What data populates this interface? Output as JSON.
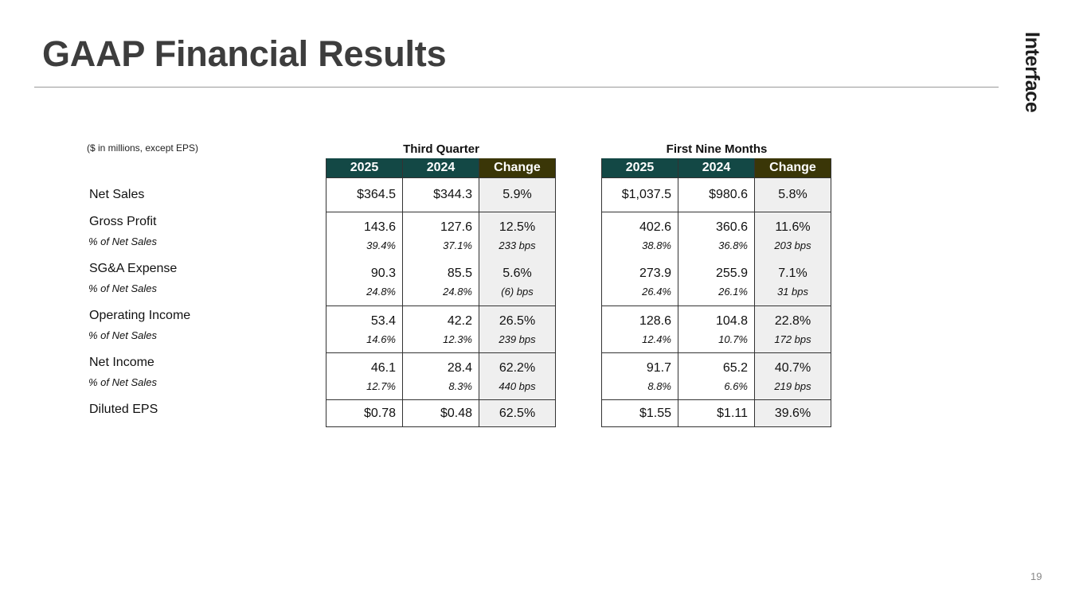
{
  "title": "GAAP Financial Results",
  "brand": "Interface",
  "note": "($ in millions, except EPS)",
  "page_number": "19",
  "groups": [
    {
      "title": "Third Quarter",
      "headers": [
        "2025",
        "2024",
        "Change"
      ]
    },
    {
      "title": "First Nine Months",
      "headers": [
        "2025",
        "2024",
        "Change"
      ]
    }
  ],
  "rows": [
    {
      "label": "Net Sales",
      "sub_label": "",
      "tq": {
        "v2025": "$364.5",
        "v2024": "$344.3",
        "chg": "5.9%",
        "s2025": "",
        "s2024": "",
        "schg": ""
      },
      "nm": {
        "v2025": "$1,037.5",
        "v2024": "$980.6",
        "chg": "5.8%",
        "s2025": "",
        "s2024": "",
        "schg": ""
      }
    },
    {
      "label": "Gross Profit",
      "sub_label": "% of Net Sales",
      "tq": {
        "v2025": "143.6",
        "v2024": "127.6",
        "chg": "12.5%",
        "s2025": "39.4%",
        "s2024": "37.1%",
        "schg": "233 bps"
      },
      "nm": {
        "v2025": "402.6",
        "v2024": "360.6",
        "chg": "11.6%",
        "s2025": "38.8%",
        "s2024": "36.8%",
        "schg": "203 bps"
      }
    },
    {
      "label": "SG&A Expense",
      "sub_label": "% of Net Sales",
      "tq": {
        "v2025": "90.3",
        "v2024": "85.5",
        "chg": "5.6%",
        "s2025": "24.8%",
        "s2024": "24.8%",
        "schg": "(6) bps"
      },
      "nm": {
        "v2025": "273.9",
        "v2024": "255.9",
        "chg": "7.1%",
        "s2025": "26.4%",
        "s2024": "26.1%",
        "schg": "31 bps"
      }
    },
    {
      "label": "Operating Income",
      "sub_label": "% of Net Sales",
      "tq": {
        "v2025": "53.4",
        "v2024": "42.2",
        "chg": "26.5%",
        "s2025": "14.6%",
        "s2024": "12.3%",
        "schg": "239 bps"
      },
      "nm": {
        "v2025": "128.6",
        "v2024": "104.8",
        "chg": "22.8%",
        "s2025": "12.4%",
        "s2024": "10.7%",
        "schg": "172 bps"
      }
    },
    {
      "label": "Net Income",
      "sub_label": "% of Net Sales",
      "tq": {
        "v2025": "46.1",
        "v2024": "28.4",
        "chg": "62.2%",
        "s2025": "12.7%",
        "s2024": "8.3%",
        "schg": "440 bps"
      },
      "nm": {
        "v2025": "91.7",
        "v2024": "65.2",
        "chg": "40.7%",
        "s2025": "8.8%",
        "s2024": "6.6%",
        "schg": "219 bps"
      }
    },
    {
      "label": "Diluted EPS",
      "sub_label": "",
      "tq": {
        "v2025": "$0.78",
        "v2024": "$0.48",
        "chg": "62.5%",
        "s2025": "",
        "s2024": "",
        "schg": ""
      },
      "nm": {
        "v2025": "$1.55",
        "v2024": "$1.11",
        "chg": "39.6%",
        "s2025": "",
        "s2024": "",
        "schg": ""
      }
    }
  ],
  "colors": {
    "header_year": "#134845",
    "header_change": "#3a3607",
    "change_fill": "#efefef"
  }
}
